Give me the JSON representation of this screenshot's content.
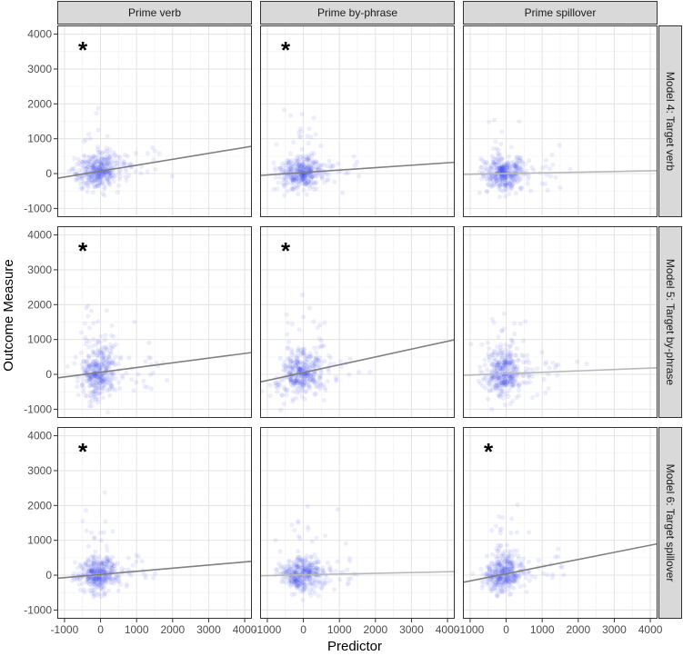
{
  "chart_data": {
    "type": "scatter",
    "title": "",
    "xlabel": "Predictor",
    "ylabel": "Outcome Measure",
    "xlim": [
      -1200,
      4200
    ],
    "ylim": [
      -1250,
      4250
    ],
    "x_ticks": [
      -1000,
      0,
      1000,
      2000,
      3000,
      4000
    ],
    "y_ticks": [
      -1000,
      0,
      1000,
      2000,
      3000,
      4000
    ],
    "x_tick_labels": [
      "-1000",
      "0",
      "1000",
      "2000",
      "3000",
      "4000"
    ],
    "y_tick_labels": [
      "-1000",
      "0",
      "1000",
      "2000",
      "3000",
      "4000"
    ],
    "grid": true,
    "legend": "none",
    "column_facets": [
      "Prime verb",
      "Prime by-phrase",
      "Prime spillover"
    ],
    "row_facets": [
      "Model 4: Target verb",
      "Model 5: Target by-phrase",
      "Model 6: Target spillover"
    ],
    "point_color": "#3344ee",
    "line_color": "#808080",
    "line_color_nonsig": "#b8b8b8",
    "significance_marker": "*",
    "panels": [
      {
        "row": 0,
        "col": 0,
        "significant": true,
        "fit": {
          "intercept": 70,
          "slope": 0.17
        },
        "spread": {
          "x_sd": 280,
          "y_sd": 330
        }
      },
      {
        "row": 0,
        "col": 1,
        "significant": true,
        "fit": {
          "intercept": 30,
          "slope": 0.07
        },
        "spread": {
          "x_sd": 320,
          "y_sd": 300
        }
      },
      {
        "row": 0,
        "col": 2,
        "significant": false,
        "fit": {
          "intercept": 0,
          "slope": 0.02
        },
        "spread": {
          "x_sd": 280,
          "y_sd": 330
        }
      },
      {
        "row": 1,
        "col": 0,
        "significant": true,
        "fit": {
          "intercept": 60,
          "slope": 0.135
        },
        "spread": {
          "x_sd": 270,
          "y_sd": 500
        }
      },
      {
        "row": 1,
        "col": 1,
        "significant": true,
        "fit": {
          "intercept": 50,
          "slope": 0.225
        },
        "spread": {
          "x_sd": 330,
          "y_sd": 430
        }
      },
      {
        "row": 1,
        "col": 2,
        "significant": false,
        "fit": {
          "intercept": 20,
          "slope": 0.04
        },
        "spread": {
          "x_sd": 280,
          "y_sd": 480
        }
      },
      {
        "row": 2,
        "col": 0,
        "significant": true,
        "fit": {
          "intercept": 20,
          "slope": 0.09
        },
        "spread": {
          "x_sd": 280,
          "y_sd": 330
        }
      },
      {
        "row": 2,
        "col": 1,
        "significant": false,
        "fit": {
          "intercept": 10,
          "slope": 0.022
        },
        "spread": {
          "x_sd": 320,
          "y_sd": 320
        }
      },
      {
        "row": 2,
        "col": 2,
        "significant": true,
        "fit": {
          "intercept": 40,
          "slope": 0.205
        },
        "spread": {
          "x_sd": 280,
          "y_sd": 330
        }
      }
    ]
  }
}
